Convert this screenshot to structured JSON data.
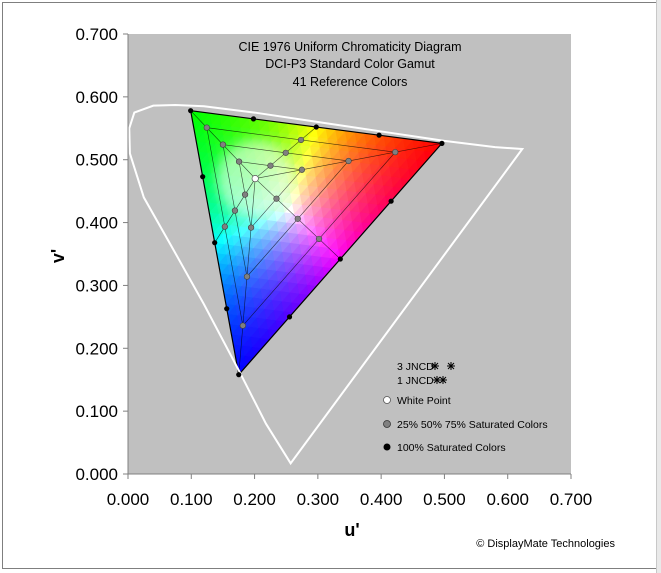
{
  "chart_data": {
    "type": "scatter",
    "title": [
      "CIE 1976 Uniform Chromaticity Diagram",
      "DCI-P3 Standard Color Gamut",
      "41 Reference Colors"
    ],
    "xlabel": "u'",
    "ylabel": "v'",
    "xlim": [
      0,
      0.7
    ],
    "ylim": [
      0,
      0.7
    ],
    "x_ticks": [
      "0.000",
      "0.100",
      "0.200",
      "0.300",
      "0.400",
      "0.500",
      "0.600",
      "0.700"
    ],
    "y_ticks": [
      "0.000",
      "0.100",
      "0.200",
      "0.300",
      "0.400",
      "0.500",
      "0.600",
      "0.700"
    ],
    "plot_background": "#c0c0c0",
    "gamut_primaries": {
      "red": [
        0.496,
        0.526
      ],
      "green": [
        0.099,
        0.578
      ],
      "blue": [
        0.175,
        0.158
      ]
    },
    "white_point": [
      0.201,
      0.47
    ],
    "spectrum_locus": [
      [
        0.257,
        0.017
      ],
      [
        0.218,
        0.08
      ],
      [
        0.175,
        0.165
      ],
      [
        0.12,
        0.27
      ],
      [
        0.07,
        0.36
      ],
      [
        0.025,
        0.44
      ],
      [
        0.003,
        0.51
      ],
      [
        0.002,
        0.55
      ],
      [
        0.01,
        0.575
      ],
      [
        0.04,
        0.586
      ],
      [
        0.075,
        0.587
      ],
      [
        0.12,
        0.585
      ],
      [
        0.2,
        0.575
      ],
      [
        0.3,
        0.56
      ],
      [
        0.4,
        0.545
      ],
      [
        0.5,
        0.53
      ],
      [
        0.58,
        0.52
      ],
      [
        0.623,
        0.517
      ]
    ],
    "saturation_levels": [
      0.25,
      0.5,
      0.75,
      1.0
    ],
    "legend": {
      "jncd3": "3 JNCD",
      "jncd1": "1 JNCD",
      "white": "White Point",
      "partial": "25% 50% 75% Saturated Colors",
      "full": "100% Saturated Colors"
    },
    "colors": {
      "full_marker": "#000000",
      "partial_marker": "#808080",
      "white_marker": "#ffffff",
      "locus": "#ffffff",
      "grid_line": "#000000"
    }
  },
  "credit": "© DisplayMate Technologies"
}
